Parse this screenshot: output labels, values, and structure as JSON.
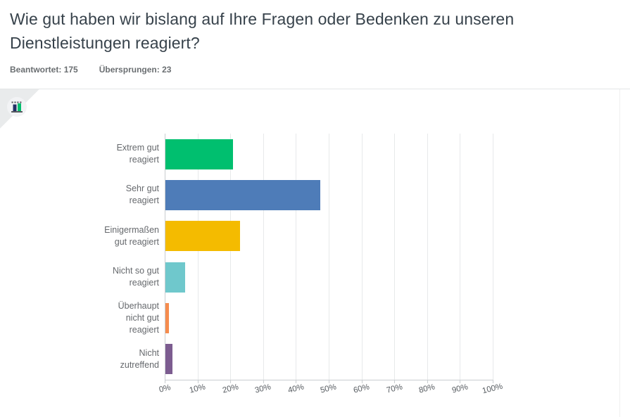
{
  "header": {
    "title": "Wie gut haben wir bislang auf Ihre Fragen oder Bedenken zu unseren Dienstleistungen reagiert?",
    "answered_label": "Beantwortet:",
    "answered_value": "175",
    "skipped_label": "Übersprungen:",
    "skipped_value": "23"
  },
  "card": {
    "icon": "bar-chart-icon"
  },
  "chart_data": {
    "type": "bar",
    "orientation": "horizontal",
    "title": "",
    "xlabel": "",
    "ylabel": "",
    "grid": true,
    "legend": false,
    "xlim": [
      0,
      100
    ],
    "categories": [
      "Extrem gut reagiert",
      "Sehr gut reagiert",
      "Einigermaßen gut reagiert",
      "Nicht so gut reagiert",
      "Überhaupt nicht gut reagiert",
      "Nicht zutreffend"
    ],
    "category_lines": [
      [
        "Extrem gut",
        "reagiert"
      ],
      [
        "Sehr gut",
        "reagiert"
      ],
      [
        "Einigermaßen",
        "gut reagiert"
      ],
      [
        "Nicht so gut",
        "reagiert"
      ],
      [
        "Überhaupt",
        "nicht gut",
        "reagiert"
      ],
      [
        "Nicht",
        "zutreffend"
      ]
    ],
    "values_percent": [
      20.5,
      47.3,
      22.7,
      6,
      1.1,
      2.2
    ],
    "bar_colors": [
      "#00BF6F",
      "#4E7CB8",
      "#F4BB00",
      "#6FC8CC",
      "#F68C4E",
      "#7C5C90"
    ],
    "x_ticks": [
      "0%",
      "10%",
      "20%",
      "30%",
      "40%",
      "50%",
      "60%",
      "70%",
      "80%",
      "90%",
      "100%"
    ]
  }
}
